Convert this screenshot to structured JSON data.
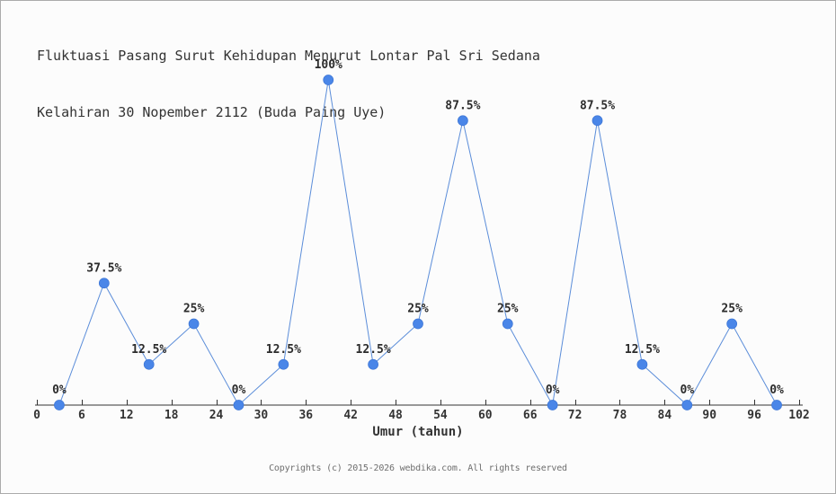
{
  "header": {
    "title_line1": "Fluktuasi Pasang Surut Kehidupan Menurut Lontar Pal Sri Sedana",
    "title_line2": "Kelahiran 30 Nopember 2112 (Buda Paing Uye)"
  },
  "chart_data": {
    "type": "line",
    "title": "Fluktuasi Pasang Surut Kehidupan Menurut Lontar Pal Sri Sedana Kelahiran 30 Nopember 2112 (Buda Paing Uye)",
    "xlabel": "Umur (tahun)",
    "ylabel": "",
    "x": [
      3,
      9,
      15,
      21,
      27,
      33,
      39,
      45,
      51,
      57,
      63,
      69,
      75,
      81,
      87,
      93,
      99
    ],
    "values": [
      0,
      37.5,
      12.5,
      25,
      0,
      12.5,
      100,
      12.5,
      25,
      87.5,
      25,
      0,
      87.5,
      12.5,
      0,
      25,
      0
    ],
    "point_labels": [
      "0%",
      "37.5%",
      "12.5%",
      "25%",
      "0%",
      "12.5%",
      "100%",
      "12.5%",
      "25%",
      "87.5%",
      "25%",
      "0%",
      "87.5%",
      "12.5%",
      "0%",
      "25%",
      "0%"
    ],
    "x_ticks": [
      0,
      6,
      12,
      18,
      24,
      30,
      36,
      42,
      48,
      54,
      60,
      66,
      72,
      78,
      84,
      90,
      96,
      102
    ],
    "xlim": [
      0,
      102
    ],
    "ylim": [
      0,
      100
    ],
    "grid": false,
    "legend": "none",
    "colors": {
      "line": "#5b8dd9",
      "marker": "#4a86e8",
      "marker_edge": "#3d76d6",
      "axis": "#333333",
      "tick_text": "#333333",
      "label_text": "#2b2b2b"
    }
  },
  "footer": {
    "copyright": "Copyrights (c) 2015-2026 webdika.com. All rights reserved"
  }
}
